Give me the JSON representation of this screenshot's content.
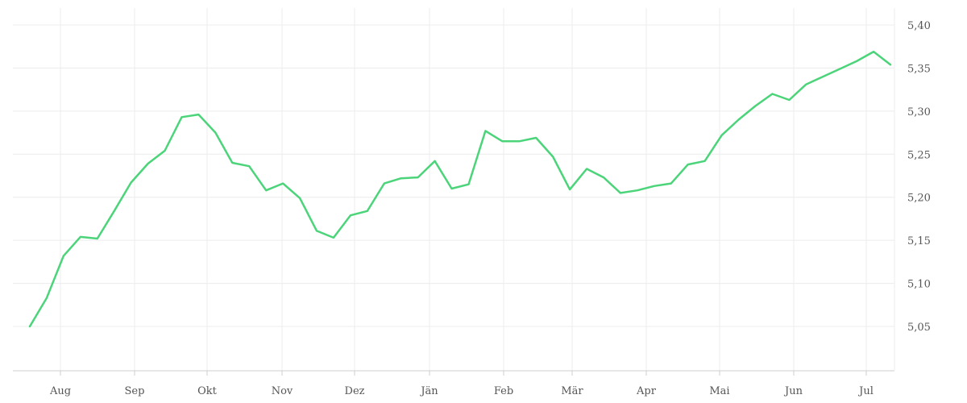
{
  "chart_data": {
    "type": "line",
    "title": "",
    "xlabel": "",
    "ylabel": "",
    "grid": true,
    "ylim": [
      5.0,
      5.42
    ],
    "y_ticks": [
      "5,05",
      "5,10",
      "5,15",
      "5,20",
      "5,25",
      "5,30",
      "5,35",
      "5,40"
    ],
    "y_tick_values": [
      5.05,
      5.1,
      5.15,
      5.2,
      5.25,
      5.3,
      5.35,
      5.4
    ],
    "x_ticks": [
      "Aug",
      "Sep",
      "Okt",
      "Nov",
      "Dez",
      "Jän",
      "Feb",
      "Mär",
      "Apr",
      "Mai",
      "Jun",
      "Jul"
    ],
    "line_color": "#4cd47a",
    "series": [
      {
        "values": [
          5.05,
          5.083,
          5.132,
          5.154,
          5.152,
          5.184,
          5.217,
          5.239,
          5.254,
          5.293,
          5.296,
          5.275,
          5.24,
          5.236,
          5.208,
          5.216,
          5.199,
          5.161,
          5.153,
          5.179,
          5.184,
          5.216,
          5.222,
          5.223,
          5.242,
          5.21,
          5.215,
          5.277,
          5.265,
          5.265,
          5.269,
          5.247,
          5.209,
          5.233,
          5.223,
          5.205,
          5.208,
          5.213,
          5.216,
          5.238,
          5.242,
          5.272,
          5.29,
          5.306,
          5.32,
          5.313,
          5.331,
          5.34,
          5.349,
          5.358,
          5.369,
          5.354
        ]
      }
    ]
  }
}
